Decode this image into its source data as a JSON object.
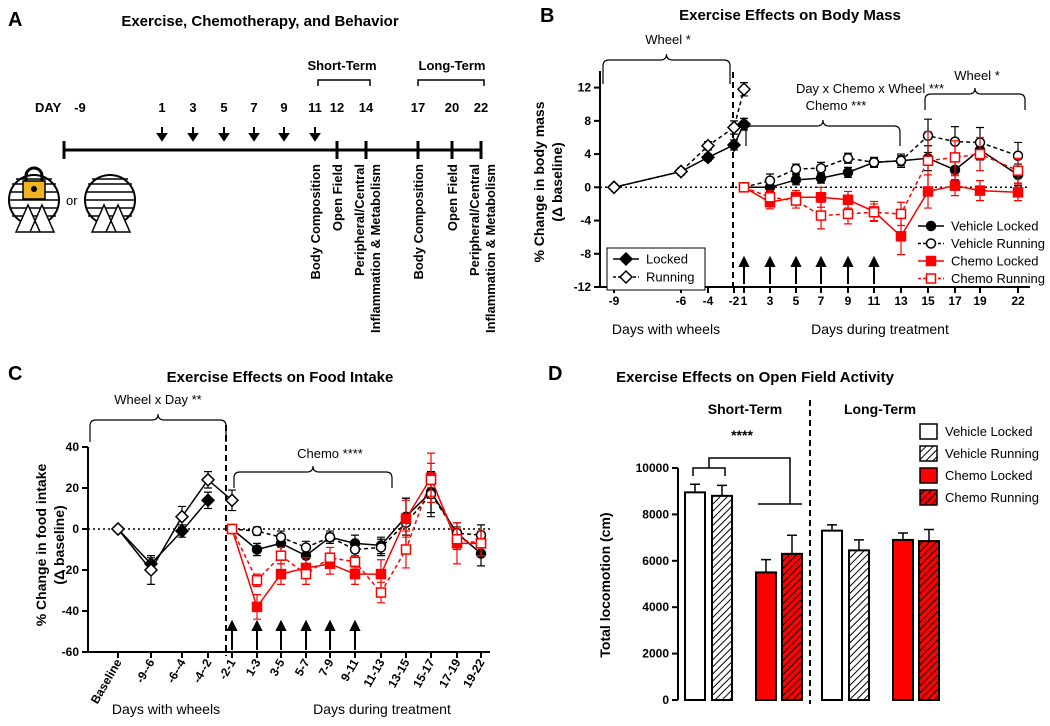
{
  "diagram": {
    "panel": "A",
    "title": "Exercise, Chemotherapy, and Behavior",
    "day_label": "DAY",
    "days": [
      -9,
      1,
      3,
      5,
      7,
      9,
      11,
      12,
      14,
      17,
      20,
      22
    ],
    "phases": [
      "Short-Term",
      "Long-Term"
    ],
    "or": "or",
    "events": [
      "Body Composition",
      "Open Field",
      "Peripheral/Central",
      "Inflammation & Metabolism",
      "Body Composition",
      "Open Field",
      "Peripheral/Central",
      "Inflammation & Metabolism"
    ]
  },
  "chart_data": [
    {
      "type": "line",
      "panel": "B",
      "title": "Exercise Effects on Body Mass",
      "y_label": [
        "% Change in body mass",
        "(Δ baseline)"
      ],
      "categories": [
        -9,
        -6,
        -4,
        -2,
        1,
        3,
        5,
        7,
        9,
        11,
        13,
        15,
        17,
        19,
        22
      ],
      "x_groups": [
        "Days with wheels",
        "Days during treatment"
      ],
      "annotations": [
        "Wheel *",
        "Day x Chemo x Wheel ***",
        "Chemo ***",
        "Wheel *"
      ],
      "ylim": [
        -12,
        14
      ],
      "yticks": [
        -12,
        -8,
        -4,
        0,
        4,
        8,
        12
      ],
      "zero_line": true,
      "series": [
        {
          "name": "Locked",
          "color": "#000000",
          "marker": "diamond",
          "filled": true,
          "dashed": false,
          "values": [
            0,
            1.9,
            3.6,
            5.1,
            7.6,
            null,
            null,
            null,
            null,
            null,
            null,
            null,
            null,
            null,
            null
          ],
          "errors": [
            0.2,
            0.4,
            0.4,
            0.6,
            0.7,
            null,
            null,
            null,
            null,
            null,
            null,
            null,
            null,
            null,
            null
          ]
        },
        {
          "name": "Running",
          "color": "#000000",
          "marker": "diamond",
          "filled": false,
          "dashed": true,
          "values": [
            0,
            1.9,
            5.0,
            7.2,
            11.8,
            null,
            null,
            null,
            null,
            null,
            null,
            null,
            null,
            null,
            null
          ],
          "errors": [
            0.2,
            0.4,
            0.5,
            0.8,
            0.8,
            null,
            null,
            null,
            null,
            null,
            null,
            null,
            null,
            null,
            null
          ]
        },
        {
          "name": "Vehicle Locked",
          "color": "#000000",
          "marker": "circle",
          "filled": true,
          "dashed": false,
          "values": [
            null,
            null,
            null,
            null,
            0,
            0,
            0.9,
            1.1,
            1.8,
            3.0,
            3.2,
            3.5,
            2.1,
            4.5,
            1.5
          ],
          "errors": [
            null,
            null,
            null,
            null,
            0.2,
            0.5,
            0.6,
            0.6,
            0.6,
            0.5,
            0.8,
            1.5,
            1.2,
            1.2,
            1.3
          ]
        },
        {
          "name": "Vehicle Running",
          "color": "#000000",
          "marker": "circle",
          "filled": false,
          "dashed": true,
          "values": [
            null,
            null,
            null,
            null,
            0,
            0.8,
            2.2,
            2.3,
            3.5,
            3.0,
            3.2,
            6.2,
            5.5,
            5.4,
            3.8
          ],
          "errors": [
            null,
            null,
            null,
            null,
            0.2,
            0.8,
            0.6,
            0.7,
            0.6,
            0.6,
            0.6,
            2.0,
            1.8,
            1.8,
            1.6
          ]
        },
        {
          "name": "Chemo Locked",
          "color": "#ff0000",
          "marker": "square",
          "filled": true,
          "dashed": false,
          "values": [
            null,
            null,
            null,
            null,
            0,
            -1.8,
            -1.2,
            -1.2,
            -1.5,
            -2.9,
            -5.9,
            -0.5,
            0.2,
            -0.4,
            -0.6
          ],
          "errors": [
            null,
            null,
            null,
            null,
            0.2,
            0.8,
            0.8,
            1.2,
            1.0,
            1.2,
            2.2,
            2.0,
            1.2,
            1.2,
            1.0
          ]
        },
        {
          "name": "Chemo Running",
          "color": "#ff0000",
          "marker": "square",
          "filled": false,
          "dashed": true,
          "values": [
            null,
            null,
            null,
            null,
            0,
            -1.2,
            -1.6,
            -3.4,
            -3.2,
            -3.0,
            -3.2,
            3.2,
            3.6,
            4.0,
            2.0
          ],
          "errors": [
            null,
            null,
            null,
            null,
            0.2,
            0.8,
            0.9,
            1.6,
            1.2,
            1.0,
            1.4,
            3.5,
            2.0,
            2.0,
            1.5
          ]
        }
      ]
    },
    {
      "type": "line",
      "panel": "C",
      "title": "Exercise Effects on Food Intake",
      "y_label": [
        "% Change in food intake",
        "(Δ baseline)"
      ],
      "categories": [
        "Baseline",
        "-9--6",
        "-6--4",
        "-4--2",
        "-2-1",
        "1-3",
        "3-5",
        "5-7",
        "7-9",
        "9-11",
        "11-13",
        "13-15",
        "15-17",
        "17-19",
        "19-22"
      ],
      "x_groups": [
        "Days with wheels",
        "Days during treatment"
      ],
      "annotations": [
        "Wheel x Day **",
        "Chemo ****"
      ],
      "ylim": [
        -60,
        40
      ],
      "yticks": [
        -60,
        -40,
        -20,
        0,
        20,
        40
      ],
      "zero_line": true,
      "series": [
        {
          "color": "#000000",
          "marker": "diamond",
          "filled": true,
          "dashed": false,
          "values": [
            0,
            -17,
            -1,
            14,
            null,
            null,
            null,
            null,
            null,
            null,
            null,
            null,
            null,
            null,
            null
          ],
          "errors": [
            0,
            3,
            3,
            4,
            null,
            null,
            null,
            null,
            null,
            null,
            null,
            null,
            null,
            null,
            null
          ]
        },
        {
          "color": "#000000",
          "marker": "diamond",
          "filled": false,
          "dashed": false,
          "values": [
            0,
            -20,
            6,
            24,
            14,
            null,
            null,
            null,
            null,
            null,
            null,
            null,
            null,
            null,
            null
          ],
          "errors": [
            0,
            7,
            5,
            4,
            5,
            null,
            null,
            null,
            null,
            null,
            null,
            null,
            null,
            null,
            null
          ]
        },
        {
          "color": "#000000",
          "marker": "circle",
          "filled": true,
          "dashed": false,
          "values": [
            null,
            null,
            null,
            null,
            0,
            -10,
            -7,
            -13,
            -4,
            -7,
            -8,
            6,
            18,
            -2,
            -12
          ],
          "errors": [
            null,
            null,
            null,
            null,
            1,
            3,
            4,
            5,
            3,
            4,
            4,
            9,
            10,
            5,
            6
          ]
        },
        {
          "color": "#000000",
          "marker": "circle",
          "filled": false,
          "dashed": true,
          "values": [
            null,
            null,
            null,
            null,
            0,
            -1,
            -4,
            -9,
            -4,
            -10,
            -9,
            3,
            17,
            -2,
            -3
          ],
          "errors": [
            null,
            null,
            null,
            null,
            1,
            2,
            3,
            3,
            2,
            3,
            4,
            12,
            11,
            3,
            5
          ]
        },
        {
          "color": "#ff0000",
          "marker": "square",
          "filled": true,
          "dashed": false,
          "values": [
            null,
            null,
            null,
            null,
            0,
            -38,
            -22,
            -19,
            -17,
            -22,
            -22,
            5,
            25,
            -7,
            -7
          ],
          "errors": [
            null,
            null,
            null,
            null,
            2,
            6,
            5,
            5,
            5,
            5,
            7,
            9,
            12,
            10,
            6
          ]
        },
        {
          "color": "#ff0000",
          "marker": "square",
          "filled": false,
          "dashed": true,
          "values": [
            null,
            null,
            null,
            null,
            0,
            -25,
            -13,
            -22,
            -14,
            -16,
            -31,
            -10,
            24,
            -5,
            -7
          ],
          "errors": [
            null,
            null,
            null,
            null,
            2,
            3,
            4,
            5,
            5,
            3,
            5,
            9,
            8,
            5,
            6
          ]
        }
      ]
    },
    {
      "type": "bar",
      "panel": "D",
      "title": "Exercise Effects on Open Field Activity",
      "y_label": [
        "Total locomotion (cm)"
      ],
      "categories": [
        "Short-Term",
        "Long-Term"
      ],
      "annotations": [
        "****"
      ],
      "ylim": [
        0,
        10000
      ],
      "yticks": [
        0,
        2000,
        4000,
        6000,
        8000,
        10000
      ],
      "series": [
        {
          "name": "Vehicle Locked",
          "color": "#ffffff",
          "hatched": false,
          "values": [
            8950,
            7300
          ],
          "errors": [
            350,
            250
          ]
        },
        {
          "name": "Vehicle Running",
          "color": "#ffffff",
          "hatched": true,
          "values": [
            8800,
            6450
          ],
          "errors": [
            450,
            450
          ]
        },
        {
          "name": "Chemo Locked",
          "color": "#ff0000",
          "hatched": false,
          "values": [
            5500,
            6900
          ],
          "errors": [
            550,
            300
          ]
        },
        {
          "name": "Chemo Running",
          "color": "#ff0000",
          "hatched": true,
          "values": [
            6300,
            6850
          ],
          "errors": [
            800,
            500
          ]
        }
      ]
    }
  ]
}
